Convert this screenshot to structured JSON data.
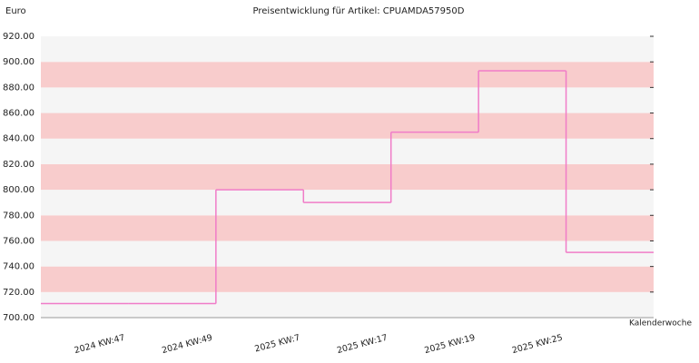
{
  "chart_data": {
    "type": "step",
    "title": "Preisentwicklung für Artikel: CPUAMDA57950D",
    "y_label": "Euro",
    "x_label": "Kalenderwoche",
    "categories": [
      "2024 KW:47",
      "2024 KW:49",
      "2025 KW:7",
      "2025 KW:17",
      "2025 KW:19",
      "2025 KW:25",
      null
    ],
    "values": [
      711,
      711,
      800,
      790,
      845,
      893,
      751
    ],
    "color": "#f07cc8",
    "ylim": [
      700,
      920
    ],
    "yticks": [
      {
        "value": 700,
        "label": "700.00"
      },
      {
        "value": 720,
        "label": "720.00"
      },
      {
        "value": 740,
        "label": "740.00"
      },
      {
        "value": 760,
        "label": "760.00"
      },
      {
        "value": 780,
        "label": "780.00"
      },
      {
        "value": 800,
        "label": "800.00"
      },
      {
        "value": 820,
        "label": "820.00"
      },
      {
        "value": 840,
        "label": "840.00"
      },
      {
        "value": 860,
        "label": "860.00"
      },
      {
        "value": 880,
        "label": "880.00"
      },
      {
        "value": 900,
        "label": "900.00"
      },
      {
        "value": 920,
        "label": "920.00"
      }
    ],
    "band_colors": [
      "#f5f5f5",
      "#f8cccc"
    ]
  }
}
